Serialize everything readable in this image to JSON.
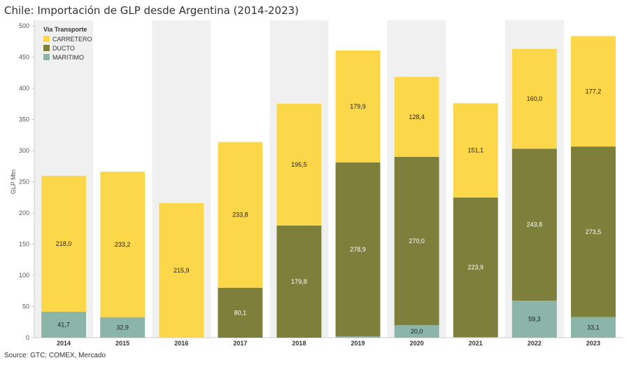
{
  "title": "Chile: Importación de GLP desde Argentina (2014-2023)",
  "source": "Source: GTC; COMEX, Mercado",
  "chart_data": {
    "type": "bar",
    "stacked": true,
    "categories": [
      "2014",
      "2015",
      "2016",
      "2017",
      "2018",
      "2019",
      "2020",
      "2021",
      "2022",
      "2023"
    ],
    "series": [
      {
        "name": "MARITIMO",
        "color": "#8ab5a8",
        "values": [
          41.7,
          32.9,
          0,
          0,
          0,
          2,
          20.0,
          1,
          59.3,
          33.1
        ],
        "labels": [
          "41,7",
          "32,9",
          "",
          "",
          "",
          "",
          "20,0",
          "",
          "59,3",
          "33,1"
        ],
        "label_color": "#222222"
      },
      {
        "name": "DUCTO",
        "color": "#7d7f3b",
        "values": [
          0,
          0,
          0,
          80.1,
          179.8,
          278.9,
          270.0,
          223.9,
          243.8,
          273.5
        ],
        "labels": [
          "",
          "",
          "",
          "80,1",
          "179,8",
          "278,9",
          "270,0",
          "223,9",
          "243,8",
          "273,5"
        ],
        "label_color": "#ffffff"
      },
      {
        "name": "CARRETERO",
        "color": "#fdd74a",
        "values": [
          218.0,
          233.2,
          215.9,
          233.8,
          195.5,
          179.9,
          128.4,
          151.1,
          160.0,
          177.2
        ],
        "labels": [
          "218,0",
          "233,2",
          "215,9",
          "233,8",
          "195,5",
          "179,9",
          "128,4",
          "151,1",
          "160,0",
          "177,2"
        ],
        "label_color": "#222222"
      }
    ],
    "ylabel": "GLP Mtn",
    "ylim": [
      0,
      500
    ],
    "yticks": [
      "0",
      "50",
      "100",
      "150",
      "200",
      "250",
      "300",
      "350",
      "400",
      "450",
      "500"
    ],
    "legend": {
      "title": "Via Transporte",
      "items": [
        "CARRETERO",
        "DUCTO",
        "MARITIMO"
      ],
      "placement": "top-left"
    },
    "band_colors": [
      "#f0f0f0",
      "#ffffff"
    ]
  }
}
